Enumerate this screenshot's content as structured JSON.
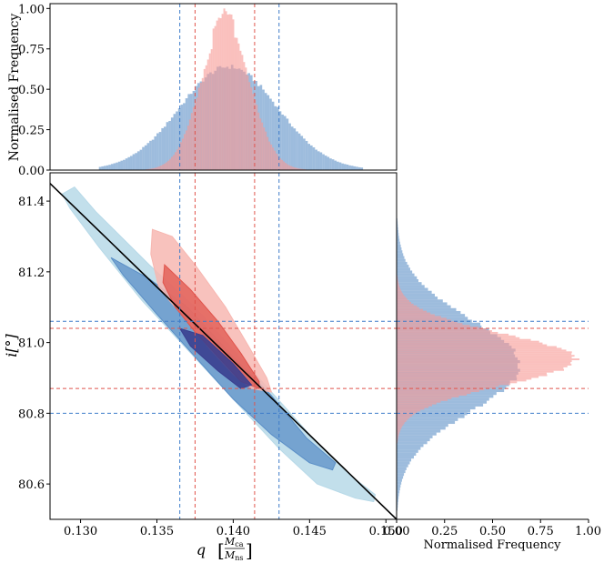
{
  "chart_data": [
    {
      "panel": "top-marginal",
      "type": "bar",
      "ylabel": "Normalised Frequency",
      "xlim": [
        0.128,
        0.1507
      ],
      "ylim": [
        0,
        1.03
      ],
      "yticks": [
        0.0,
        0.25,
        0.5,
        0.75,
        1.0
      ],
      "ytick_labels": [
        "0.00",
        "0.25",
        "0.50",
        "0.75",
        "1.00"
      ],
      "series": [
        {
          "color": "#5b8fc7",
          "type": "histogram",
          "center": 0.1397,
          "sigma": 0.0032,
          "peak": 0.64,
          "x_range": [
            0.1312,
            0.1485
          ]
        },
        {
          "color": "#f79a95",
          "type": "histogram",
          "center": 0.1395,
          "sigma": 0.0016,
          "peak": 0.9,
          "x_range": [
            0.1325,
            0.1455
          ]
        }
      ],
      "vlines": [
        {
          "x": 0.1365,
          "color": "#3d7cc9"
        },
        {
          "x": 0.143,
          "color": "#3d7cc9"
        },
        {
          "x": 0.1375,
          "color": "#e0544c"
        },
        {
          "x": 0.1414,
          "color": "#e0544c"
        }
      ]
    },
    {
      "panel": "joint",
      "type": "scatter",
      "xlabel": "q",
      "xlabel_unit": {
        "num": "M",
        "num_sub": "ca",
        "den": "M",
        "den_sub": "ns"
      },
      "ylabel": "i[°]",
      "xlim": [
        0.128,
        0.1507
      ],
      "ylim": [
        80.5,
        81.48
      ],
      "xticks": [
        0.13,
        0.135,
        0.14,
        0.145,
        0.15
      ],
      "xtick_labels": [
        "0.130",
        "0.135",
        "0.140",
        "0.145",
        "0.150"
      ],
      "yticks": [
        80.6,
        80.8,
        81.0,
        81.2,
        81.4
      ],
      "ytick_labels": [
        "80.6",
        "80.8",
        "81.0",
        "81.2",
        "81.4"
      ],
      "line": {
        "x": [
          0.128,
          0.1507
        ],
        "y": [
          81.45,
          80.5
        ],
        "color": "#000000"
      },
      "contours": [
        {
          "level": "outer",
          "color": "#b7d9e8",
          "points": [
            [
              0.1288,
              81.42
            ],
            [
              0.1296,
              81.44
            ],
            [
              0.131,
              81.37
            ],
            [
              0.1345,
              81.22
            ],
            [
              0.1375,
              81.1
            ],
            [
              0.14,
              80.98
            ],
            [
              0.1425,
              80.86
            ],
            [
              0.145,
              80.74
            ],
            [
              0.1478,
              80.62
            ],
            [
              0.1493,
              80.57
            ],
            [
              0.1492,
              80.55
            ],
            [
              0.148,
              80.56
            ],
            [
              0.1455,
              80.6
            ],
            [
              0.143,
              80.7
            ],
            [
              0.14,
              80.84
            ],
            [
              0.137,
              80.98
            ],
            [
              0.134,
              81.12
            ],
            [
              0.1312,
              81.27
            ],
            [
              0.1293,
              81.38
            ]
          ]
        },
        {
          "level": "inner",
          "color": "#5b8fc7",
          "points": [
            [
              0.132,
              81.24
            ],
            [
              0.1345,
              81.18
            ],
            [
              0.137,
              81.1
            ],
            [
              0.14,
              80.96
            ],
            [
              0.1425,
              80.85
            ],
            [
              0.1448,
              80.73
            ],
            [
              0.1467,
              80.66
            ],
            [
              0.1465,
              80.64
            ],
            [
              0.145,
              80.66
            ],
            [
              0.1425,
              80.74
            ],
            [
              0.14,
              80.84
            ],
            [
              0.1375,
              80.96
            ],
            [
              0.135,
              81.08
            ],
            [
              0.1328,
              81.19
            ]
          ]
        },
        {
          "level": "outer",
          "color": "#f7b7b1",
          "points": [
            [
              0.1347,
              81.32
            ],
            [
              0.136,
              81.3
            ],
            [
              0.1375,
              81.22
            ],
            [
              0.1395,
              81.1
            ],
            [
              0.141,
              80.99
            ],
            [
              0.1422,
              80.9
            ],
            [
              0.1425,
              80.86
            ],
            [
              0.1412,
              80.87
            ],
            [
              0.14,
              80.91
            ],
            [
              0.1385,
              80.98
            ],
            [
              0.137,
              81.06
            ],
            [
              0.1358,
              81.12
            ],
            [
              0.1351,
              81.16
            ],
            [
              0.1346,
              81.25
            ]
          ]
        },
        {
          "level": "inner",
          "color": "#e0544c",
          "points": [
            [
              0.1355,
              81.22
            ],
            [
              0.1372,
              81.15
            ],
            [
              0.139,
              81.06
            ],
            [
              0.1405,
              80.97
            ],
            [
              0.1417,
              80.89
            ],
            [
              0.1417,
              80.87
            ],
            [
              0.1405,
              80.89
            ],
            [
              0.139,
              80.96
            ],
            [
              0.1375,
              81.03
            ],
            [
              0.1362,
              81.1
            ],
            [
              0.1354,
              81.17
            ]
          ]
        },
        {
          "level": "core",
          "color": "#3a3f8f",
          "points": [
            [
              0.1365,
              81.04
            ],
            [
              0.138,
              81.02
            ],
            [
              0.14,
              80.94
            ],
            [
              0.1412,
              80.88
            ],
            [
              0.1405,
              80.87
            ],
            [
              0.139,
              80.92
            ],
            [
              0.1372,
              80.99
            ]
          ]
        }
      ],
      "hlines": [
        {
          "y": 81.06,
          "color": "#3d7cc9"
        },
        {
          "y": 80.8,
          "color": "#3d7cc9"
        },
        {
          "y": 81.04,
          "color": "#e0544c"
        },
        {
          "y": 80.87,
          "color": "#e0544c"
        }
      ],
      "vlines": [
        {
          "x": 0.1365,
          "color": "#3d7cc9"
        },
        {
          "x": 0.143,
          "color": "#3d7cc9"
        },
        {
          "x": 0.1375,
          "color": "#e0544c"
        },
        {
          "x": 0.1414,
          "color": "#e0544c"
        }
      ]
    },
    {
      "panel": "right-marginal",
      "type": "bar",
      "orientation": "horizontal",
      "xlabel": "Normalised Frequency",
      "xlim": [
        0,
        1.0
      ],
      "ylim": [
        80.5,
        81.48
      ],
      "xticks": [
        0.0,
        0.25,
        0.5,
        0.75,
        1.0
      ],
      "xtick_labels": [
        "0.00",
        "0.25",
        "0.50",
        "0.75",
        "1.00"
      ],
      "series": [
        {
          "color": "#5b8fc7",
          "type": "histogram",
          "center": 80.935,
          "sigma": 0.13,
          "peak": 0.64,
          "y_range": [
            80.5,
            81.4
          ]
        },
        {
          "color": "#f79a95",
          "type": "histogram",
          "center": 80.952,
          "sigma": 0.072,
          "peak": 0.93,
          "y_range": [
            80.7,
            81.25
          ]
        }
      ],
      "hlines": [
        {
          "y": 81.06,
          "color": "#3d7cc9"
        },
        {
          "y": 80.8,
          "color": "#3d7cc9"
        },
        {
          "y": 81.04,
          "color": "#e0544c"
        },
        {
          "y": 80.87,
          "color": "#e0544c"
        }
      ]
    }
  ]
}
